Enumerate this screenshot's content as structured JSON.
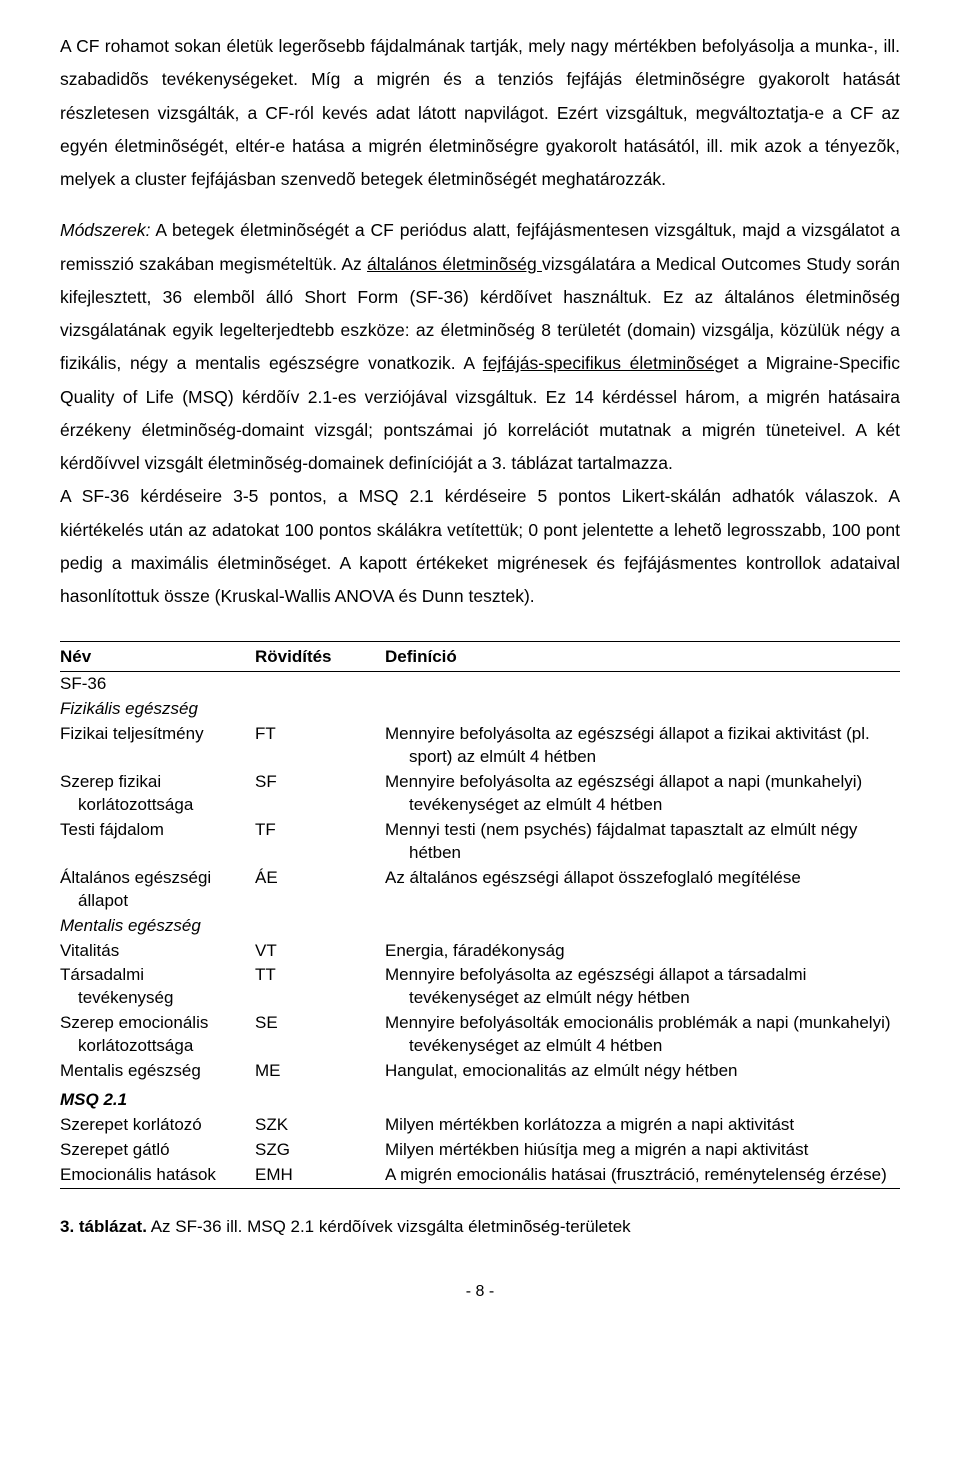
{
  "text": {
    "p1a": "A CF rohamot sokan életük legerõsebb fájdalmának tartják, mely nagy mértékben befolyásolja a munka-, ill. szabadidõs tevékenységeket. Míg a migrén és a tenziós fejfájás életminõségre gyakorolt hatását részletesen vizsgálták, a CF-ról kevés adat látott napvilágot. Ezért vizsgáltuk, megváltoztatja-e a CF az egyén életminõségét, eltér-e hatása a migrén életminõségre gyakorolt hatásától, ill. mik azok a tényezõk, melyek a cluster fejfájásban szenvedõ betegek életminõségét meghatározzák.",
    "p2_lead": "Módszerek:",
    "p2a": " A betegek életminõségét a CF periódus alatt, fejfájásmentesen vizsgáltuk, majd a vizsgálatot a remisszió szakában megismételtük. Az ",
    "p2_u1": "általános életminõség ",
    "p2b": "vizsgálatára a Medical Outcomes Study során kifejlesztett, 36 elembõl álló Short Form (SF-36) kérdõívet használtuk. Ez az általános életminõség vizsgálatának egyik legelterjedtebb eszköze: az életminõség 8 területét (domain) vizsgálja, közülük négy a fizikális, négy a mentalis egészségre vonatkozik. A ",
    "p2_u2": "fejfájás-specifikus életminõség",
    "p2c": "et a Migraine-Specific Quality of Life (MSQ) kérdõív 2.1-es verziójával vizsgáltuk. Ez 14 kérdéssel három, a migrén hatásaira érzékeny életminõség-domaint vizsgál; pontszámai jó korrelációt mutatnak a migrén tüneteivel. A két kérdõívvel vizsgált életminõség-domainek definícióját a 3. táblázat tartalmazza.",
    "p3": "A SF-36 kérdéseire 3-5 pontos, a MSQ 2.1 kérdéseire 5 pontos Likert-skálán adhatók válaszok. A kiértékelés után az adatokat 100 pontos skálákra vetítettük; 0 pont jelentette a lehetõ legrosszabb, 100 pont pedig a maximális életminõséget. A kapott értékeket migrénesek és fejfájásmentes kontrollok adataival hasonlítottuk össze (Kruskal-Wallis ANOVA és Dunn tesztek)."
  },
  "table": {
    "head": {
      "name": "Név",
      "abbr": "Rövidítés",
      "def": "Definíció"
    },
    "sf36_label": "SF-36",
    "sf36_phys": "Fizikális egészség",
    "rows_phys": [
      {
        "name_l1": "Fizikai teljesítmény",
        "name_l2": "",
        "abbr": "FT",
        "def_l1": "Mennyire befolyásolta az egészségi állapot a fizikai aktivitást (pl.",
        "def_l2": "sport) az elmúlt 4 hétben"
      },
      {
        "name_l1": "Szerep fizikai",
        "name_l2": "korlátozottsága",
        "abbr": "SF",
        "def_l1": "Mennyire befolyásolta az egészségi állapot a napi (munkahelyi)",
        "def_l2": "tevékenységet az elmúlt 4 hétben"
      },
      {
        "name_l1": "Testi fájdalom",
        "name_l2": "",
        "abbr": "TF",
        "def_l1": "Mennyi testi (nem psychés) fájdalmat tapasztalt az elmúlt négy",
        "def_l2": "hétben"
      },
      {
        "name_l1": "Általános egészségi",
        "name_l2": "állapot",
        "abbr": "ÁE",
        "def_l1": "Az általános egészségi állapot összefoglaló megítélése",
        "def_l2": ""
      }
    ],
    "sf36_ment": "Mentalis egészség",
    "rows_ment": [
      {
        "name_l1": "Vitalitás",
        "name_l2": "",
        "abbr": "VT",
        "def_l1": "Energia, fáradékonyság",
        "def_l2": ""
      },
      {
        "name_l1": "Társadalmi",
        "name_l2": "tevékenység",
        "abbr": "TT",
        "def_l1": "Mennyire befolyásolta az egészségi állapot a társadalmi",
        "def_l2": "tevékenységet az elmúlt négy hétben"
      },
      {
        "name_l1": "Szerep emocionális",
        "name_l2": "korlátozottsága",
        "abbr": "SE",
        "def_l1": "Mennyire befolyásolták emocionális problémák a napi (munkahelyi)",
        "def_l2": "tevékenységet az elmúlt 4 hétben"
      },
      {
        "name_l1": "Mentalis egészség",
        "name_l2": "",
        "abbr": "ME",
        "def_l1": "Hangulat, emocionalitás az elmúlt négy hétben",
        "def_l2": ""
      }
    ],
    "msq_label": "MSQ 2.1",
    "rows_msq": [
      {
        "name_l1": "Szerepet korlátozó",
        "abbr": "SZK",
        "def_l1": "Milyen mértékben korlátozza a migrén a napi aktivitást"
      },
      {
        "name_l1": "Szerepet gátló",
        "abbr": "SZG",
        "def_l1": "Milyen mértékben hiúsítja meg a migrén a napi aktivitást"
      },
      {
        "name_l1": "Emocionális hatások",
        "abbr": "EMH",
        "def_l1": "A migrén emocionális hatásai (frusztráció, reménytelenség érzése)"
      }
    ]
  },
  "caption": {
    "label": "3. táblázat.",
    "text": " Az SF-36 ill. MSQ 2.1 kérdõívek vizsgálta életminõség-területek"
  },
  "pagenum": "- 8 -"
}
